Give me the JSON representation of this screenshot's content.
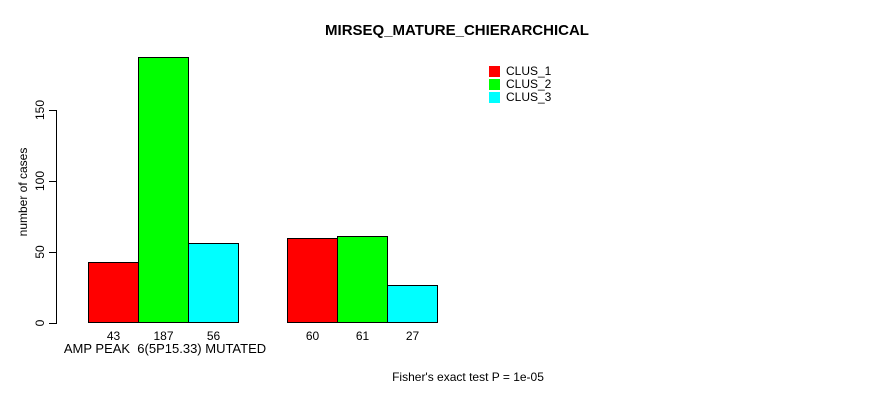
{
  "chart_data": {
    "type": "bar",
    "title": "MIRSEQ_MATURE_CHIERARCHICAL",
    "ylabel": "number of cases",
    "xlabel": "",
    "ylim": [
      0,
      190
    ],
    "yticks": [
      0,
      50,
      100,
      150
    ],
    "grid": false,
    "legend_position": "top-right",
    "categories": [
      "AMP PEAK  6(5P15.33) MUTATED",
      ""
    ],
    "series": [
      {
        "name": "CLUS_1",
        "color": "#FF0000",
        "values": [
          43,
          60
        ]
      },
      {
        "name": "CLUS_2",
        "color": "#00FF00",
        "values": [
          187,
          61
        ]
      },
      {
        "name": "CLUS_3",
        "color": "#00FFFF",
        "values": [
          56,
          27
        ]
      }
    ],
    "bar_value_labels": [
      [
        43,
        187,
        56
      ],
      [
        60,
        61,
        27
      ]
    ],
    "annotation": "Fisher's exact test P = 1e-05",
    "axis_color": "#000000",
    "bar_border_color": "#000000"
  }
}
